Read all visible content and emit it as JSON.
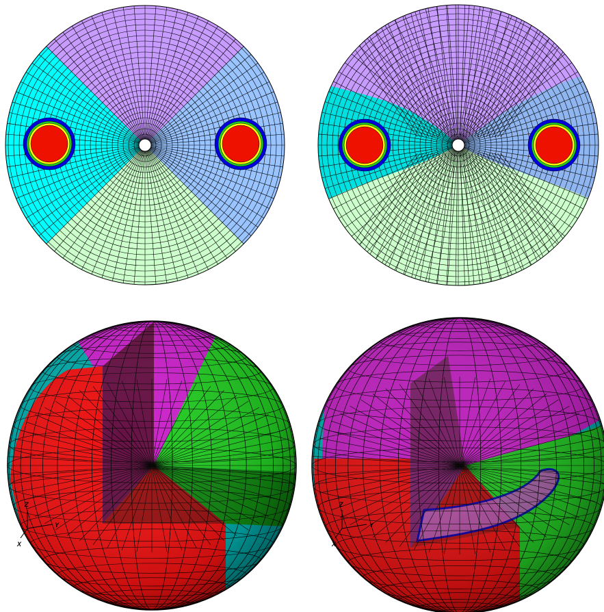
{
  "axes_triads": [
    {
      "z": "Z",
      "y": "Y",
      "x": "X"
    },
    {
      "z": "Z",
      "y": "Y",
      "x": "X"
    }
  ]
}
